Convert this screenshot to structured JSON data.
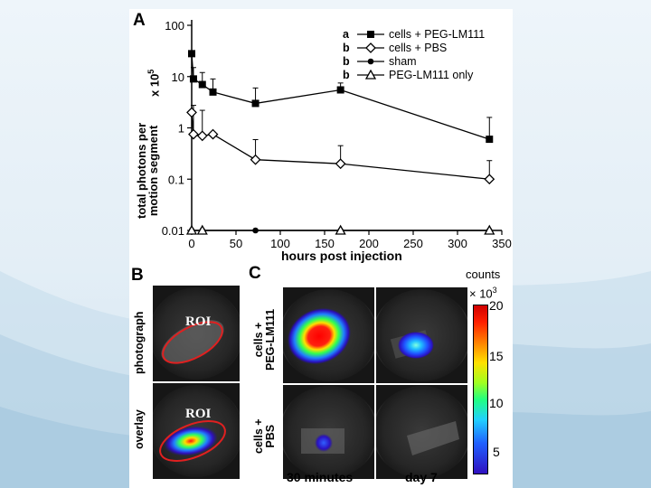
{
  "figure": {
    "panel_a": "A",
    "panel_b": "B",
    "panel_c": "C",
    "row_photograph": "photograph",
    "row_overlay": "overlay",
    "row_cells_peg_1": "cells +",
    "row_cells_peg_2": "PEG-LM111",
    "row_cells_pbs_1": "cells +",
    "row_cells_pbs_2": "PBS",
    "roi_top": "ROI",
    "roi_bottom": "ROI",
    "time_1": "30 minutes",
    "time_2": "day 7",
    "colorbar_title": "counts",
    "colorbar_unit_base": "× 10",
    "colorbar_unit_exp": "3",
    "colorbar_ticks": [
      "20",
      "15",
      "10",
      "5"
    ]
  },
  "chart_data": {
    "type": "line",
    "xlabel": "hours post injection",
    "ylabel_line1": "total photons per",
    "ylabel_line2": "motion segment",
    "yunit_base": "x 10",
    "yunit_exp": "5",
    "yscale": "log",
    "xlim": [
      0,
      350
    ],
    "ylim": [
      0.01,
      100
    ],
    "xticks": [
      0,
      50,
      100,
      150,
      200,
      250,
      300,
      350
    ],
    "yticks": [
      {
        "v": 100,
        "t": "100"
      },
      {
        "v": 10,
        "t": "10"
      },
      {
        "v": 1,
        "t": "1"
      },
      {
        "v": 0.1,
        "t": "0.1"
      },
      {
        "v": 0.01,
        "t": "0.01"
      }
    ],
    "legend_position": "top-right",
    "series": [
      {
        "letter": "a",
        "name": "cells + PEG-LM111",
        "marker": "square",
        "color": "#000000",
        "x": [
          0,
          2,
          12,
          24,
          72,
          168,
          336
        ],
        "y": [
          28,
          9,
          7,
          5,
          3,
          5.5,
          0.6
        ],
        "err": [
          null,
          6,
          5,
          4,
          3,
          2,
          1
        ]
      },
      {
        "letter": "b",
        "name": "cells + PBS",
        "marker": "diamond-open",
        "color": "#000000",
        "x": [
          0,
          2,
          12,
          24,
          72,
          168,
          336
        ],
        "y": [
          2,
          0.75,
          0.7,
          0.75,
          0.24,
          0.2,
          0.1
        ],
        "err": [
          null,
          2,
          1.5,
          null,
          0.35,
          0.25,
          0.13
        ]
      },
      {
        "letter": "b",
        "name": "sham",
        "marker": "circle",
        "color": "#000000",
        "x": [
          0,
          12,
          72,
          168,
          336
        ],
        "y": [
          0.01,
          0.01,
          0.01,
          0.01,
          0.01
        ],
        "err": [
          null,
          null,
          null,
          null,
          null
        ]
      },
      {
        "letter": "b",
        "name": "PEG-LM111 only",
        "marker": "triangle-open",
        "color": "#000000",
        "x": [
          0,
          12,
          168,
          336
        ],
        "y": [
          0.01,
          0.01,
          0.01,
          0.01
        ],
        "err": [
          null,
          null,
          null,
          null
        ]
      }
    ]
  }
}
